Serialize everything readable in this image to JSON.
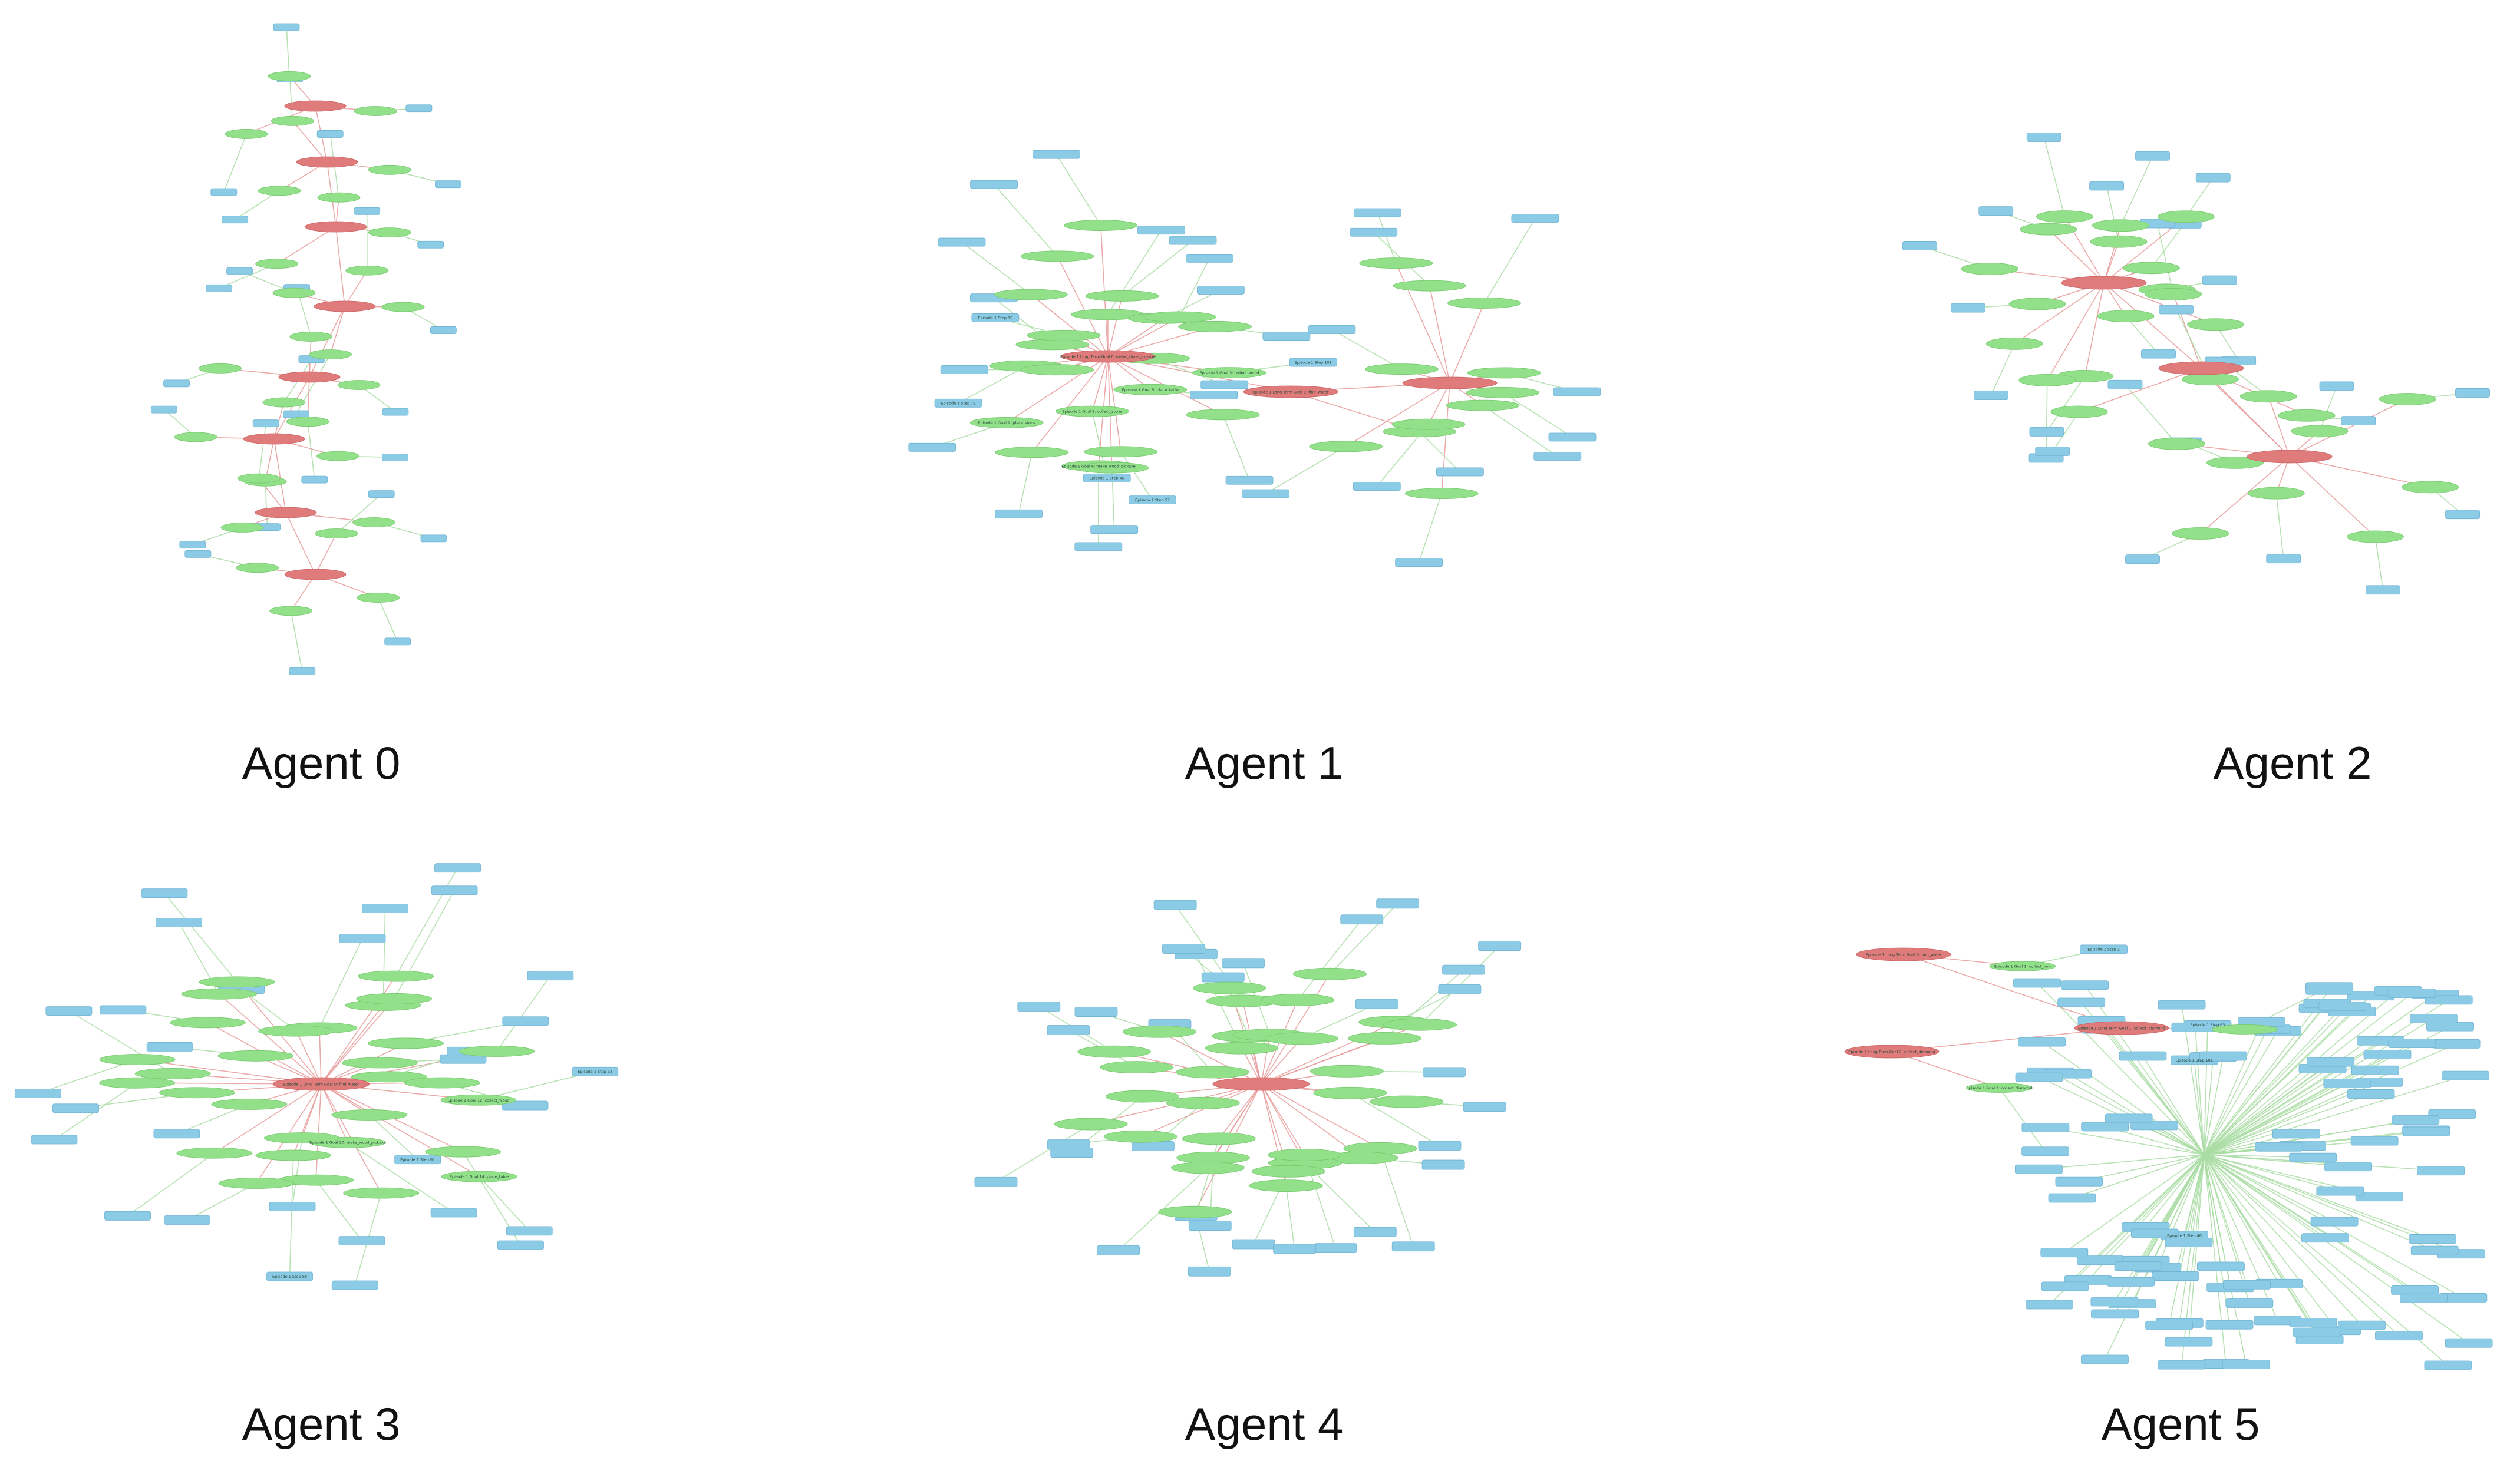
{
  "colors": {
    "step_node": "#8ccbe6",
    "goal_node": "#93e08b",
    "long_term_node": "#e07b7b",
    "edge_green": "#a9dca3",
    "edge_red": "#e79a9a",
    "edge_blue": "#9fcbe0",
    "caption": "#111111"
  },
  "agents": [
    {
      "caption": "Agent 0",
      "long_term_labels": [],
      "goal_labels": [],
      "step_labels": []
    },
    {
      "caption": "Agent 1",
      "long_term_labels": [
        "Episode 1 Long Term Goal 0: make_stone_pickaxe",
        "Episode 1 Long Term Goal 1: find_water"
      ],
      "goal_labels": [
        "Episode 1 Goal 3: collect_wood",
        "Episode 1 Goal 5: place_table",
        "Episode 1 Goal 6: make_wood_pickaxe",
        "Episode 1 Goal 8: collect_stone",
        "Episode 1 Goal 9: place_stone"
      ],
      "step_labels": [
        "Episode 1 Step 101",
        "Episode 1 Step 57",
        "Episode 1 Step 45",
        "Episode 1 Step 72",
        "Episode 1 Step 19"
      ]
    },
    {
      "caption": "Agent 2",
      "long_term_labels": [],
      "goal_labels": [],
      "step_labels": []
    },
    {
      "caption": "Agent 3",
      "long_term_labels": [
        "Episode 1 Long Term Goal 0: find_water"
      ],
      "goal_labels": [
        "Episode 1 Goal 12: collect_wood",
        "Episode 1 Goal 14: place_table",
        "Episode 1 Goal 20: make_wood_pickaxe"
      ],
      "step_labels": [
        "Episode 1 Step 33",
        "Episode 1 Step 61",
        "Episode 1 Step 88"
      ]
    },
    {
      "caption": "Agent 4",
      "long_term_labels": [],
      "goal_labels": [],
      "step_labels": []
    },
    {
      "caption": "Agent 5",
      "long_term_labels": [
        "Episode 1 Long Term Goal 0: find_water",
        "Episode 1 Long Term Goal 1: collect_diamond",
        "Episode 1 Long Term Goal 2: collect_diamond"
      ],
      "goal_labels": [
        "Episode 1 Goal 1: collect_iron",
        "Episode 1 Goal 2: collect_diamond",
        "Episode 1 Goal 3: collect_diamond"
      ],
      "step_labels": [
        "Episode 1 Step 2",
        "Episode 1 Step 101",
        "Episode 1 Step 40",
        "Episode 1 Step 63"
      ]
    }
  ]
}
